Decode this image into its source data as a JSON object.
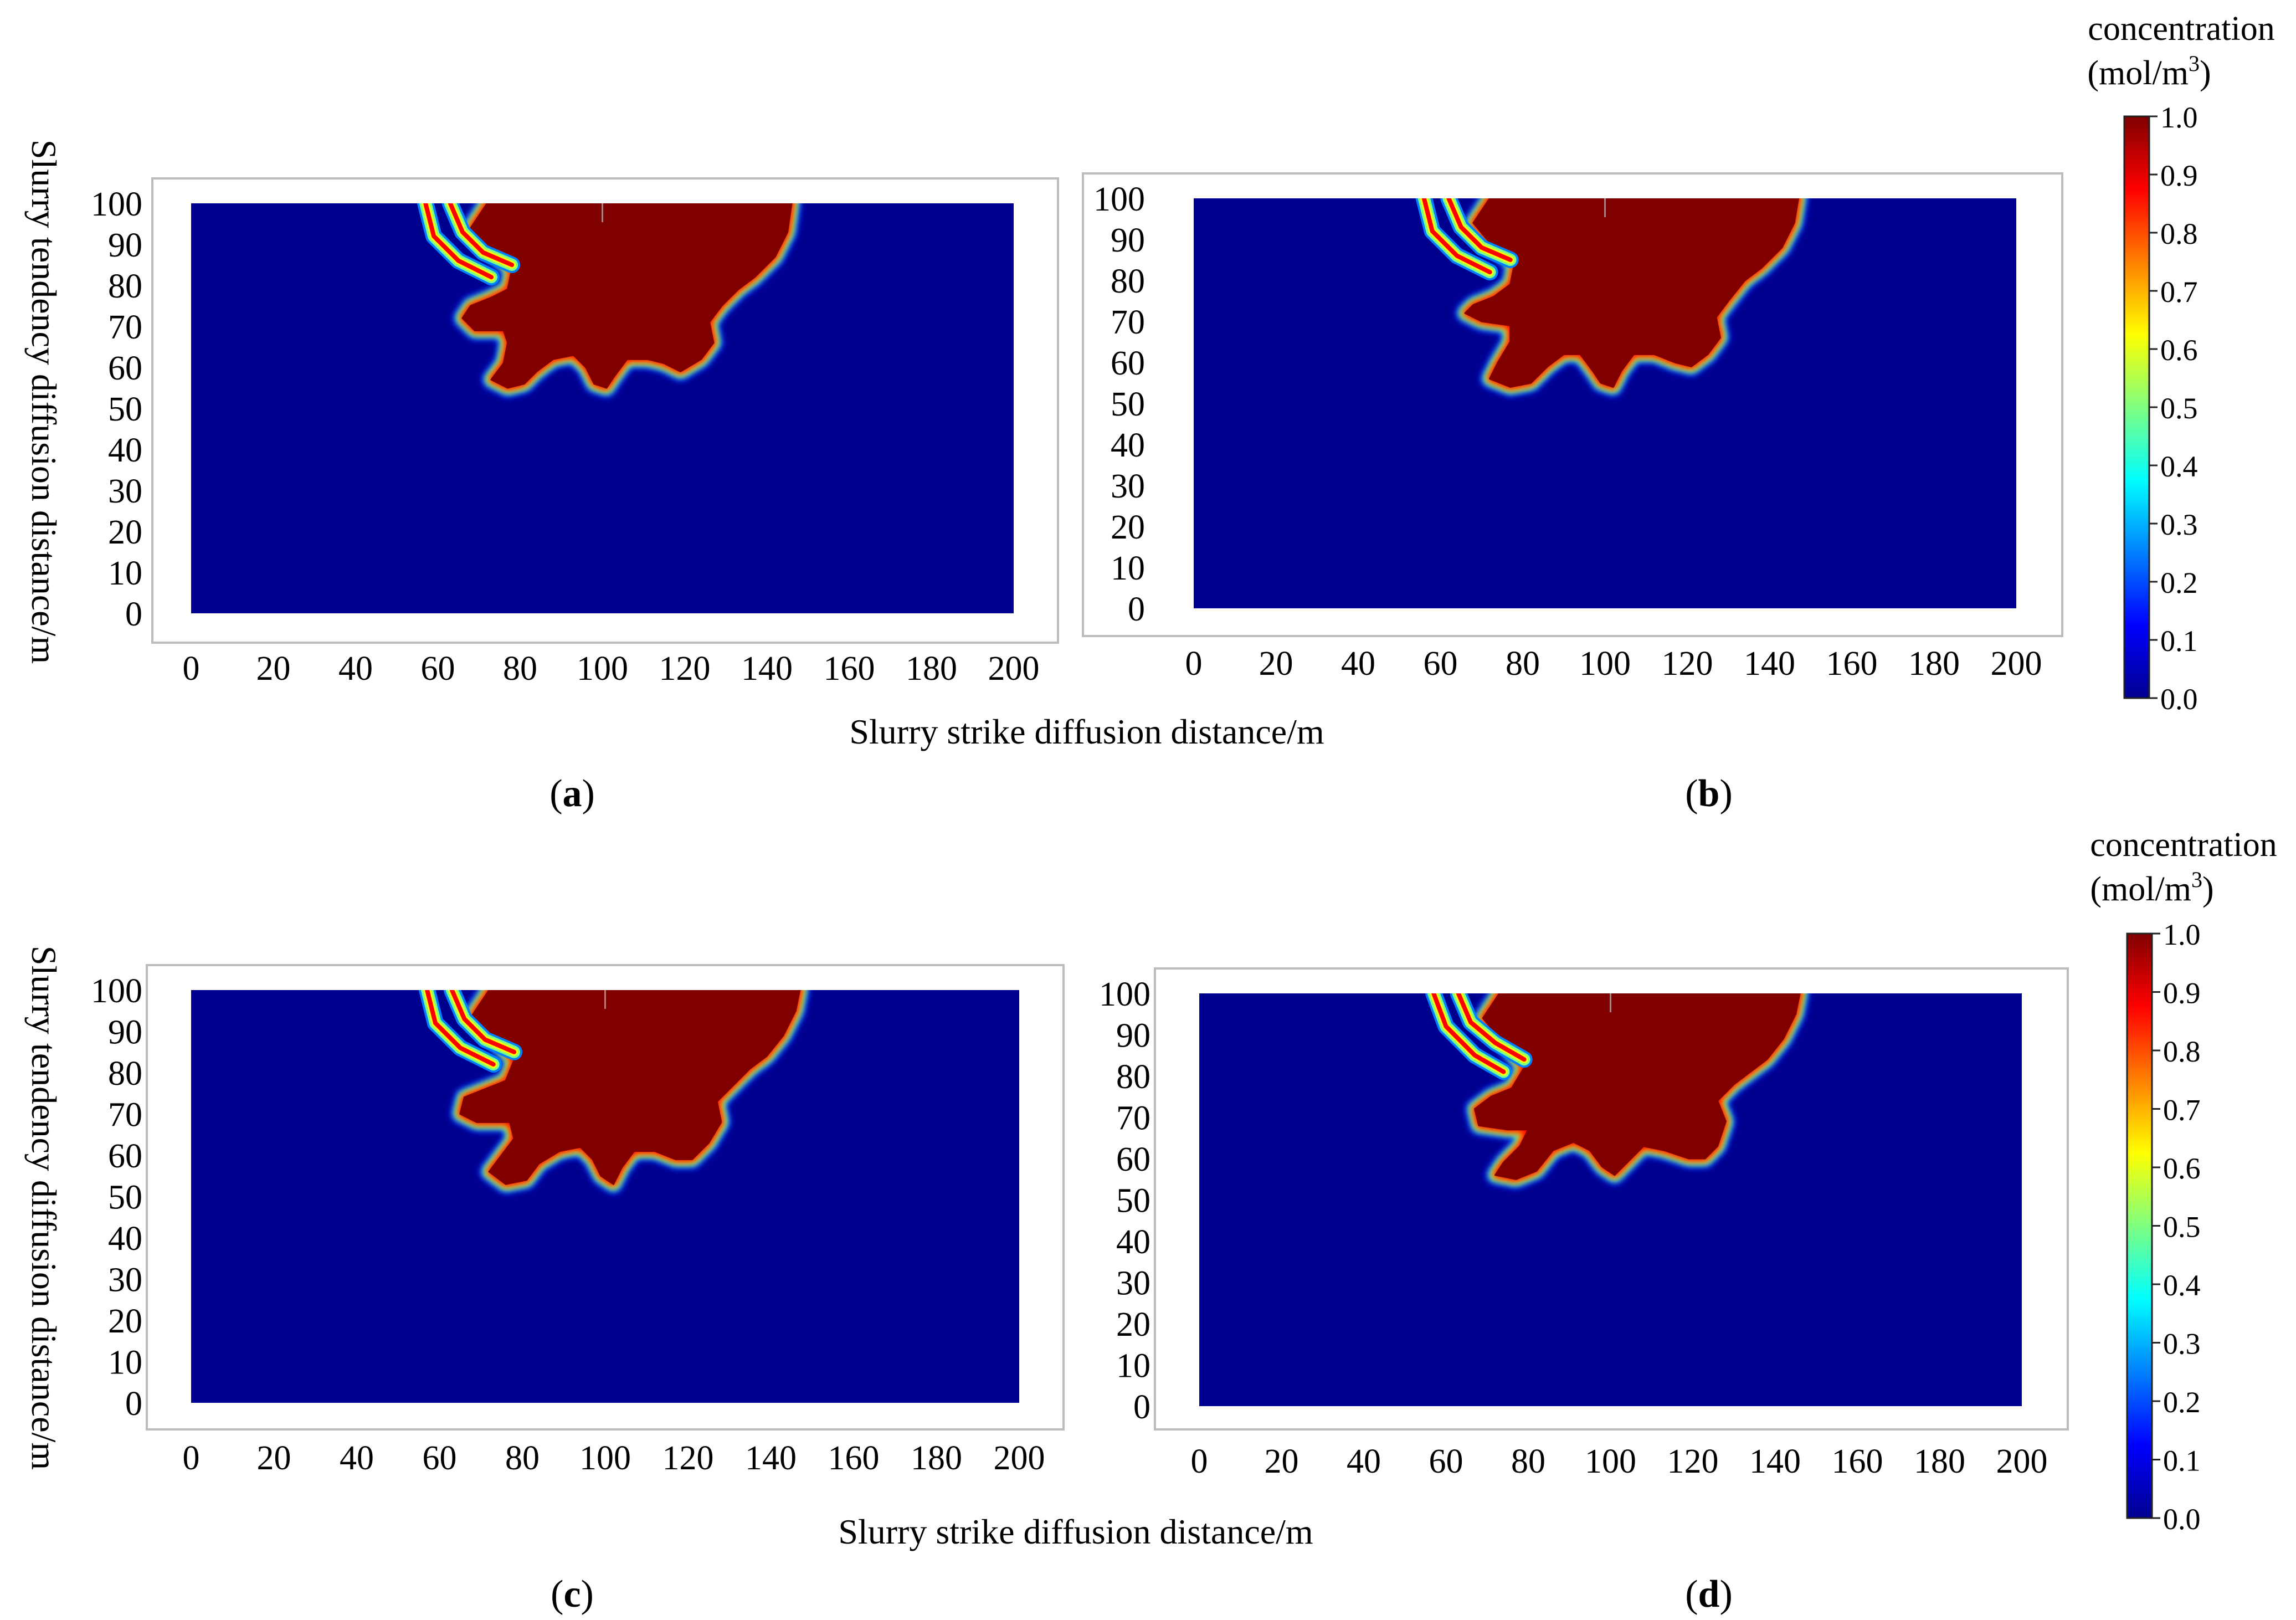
{
  "figure": {
    "rows": [
      {
        "xlabel": "Slurry strike diffusion distance/m",
        "ylabel": "Slurry tendency diffusion distance/m"
      },
      {
        "xlabel": "Slurry strike diffusion distance/m",
        "ylabel": "Slurry tendency diffusion distance/m"
      }
    ],
    "colorbars": [
      {
        "title_line1": "concentration",
        "title_line2_base": "(mol/m",
        "title_line2_sup": "3",
        "title_line2_end": ")",
        "ticks": [
          "0.0",
          "0.1",
          "0.2",
          "0.3",
          "0.4",
          "0.5",
          "0.6",
          "0.7",
          "0.8",
          "0.9",
          "1.0"
        ]
      },
      {
        "title_line1": "concentration",
        "title_line2_base": "(mol/m",
        "title_line2_sup": "3",
        "title_line2_end": ")",
        "ticks": [
          "0.0",
          "0.1",
          "0.2",
          "0.3",
          "0.4",
          "0.5",
          "0.6",
          "0.7",
          "0.8",
          "0.9",
          "1.0"
        ]
      }
    ],
    "colormap": [
      "#00008f",
      "#0000ff",
      "#0080ff",
      "#00ffff",
      "#80ff80",
      "#ffff00",
      "#ff8000",
      "#ff0000",
      "#800000"
    ],
    "background_color": "#00008f",
    "plume_color": "#800000"
  },
  "chart_data": [
    {
      "panel": "a",
      "label": "a",
      "type": "heatmap",
      "x_ticks": [
        "0",
        "20",
        "40",
        "60",
        "80",
        "100",
        "120",
        "140",
        "160",
        "180",
        "200"
      ],
      "y_ticks": [
        "0",
        "10",
        "20",
        "30",
        "40",
        "50",
        "60",
        "70",
        "80",
        "90",
        "100"
      ],
      "xlim": [
        0,
        200
      ],
      "ylim": [
        0,
        100
      ],
      "value_range": [
        0.0,
        1.0
      ],
      "plume_outline": [
        [
          72,
          100
        ],
        [
          68,
          94
        ],
        [
          73,
          88
        ],
        [
          78,
          84
        ],
        [
          77,
          79
        ],
        [
          73,
          77
        ],
        [
          68,
          75
        ],
        [
          66,
          72
        ],
        [
          69,
          69
        ],
        [
          76,
          69
        ],
        [
          77,
          66
        ],
        [
          76,
          61
        ],
        [
          73,
          57
        ],
        [
          77,
          55
        ],
        [
          81,
          56
        ],
        [
          84,
          59
        ],
        [
          88,
          62
        ],
        [
          93,
          63
        ],
        [
          96,
          60
        ],
        [
          98,
          56
        ],
        [
          101,
          55
        ],
        [
          103,
          58
        ],
        [
          106,
          62
        ],
        [
          111,
          62
        ],
        [
          115,
          61
        ],
        [
          119,
          59
        ],
        [
          124,
          62
        ],
        [
          127,
          66
        ],
        [
          126,
          71
        ],
        [
          129,
          75
        ],
        [
          133,
          79
        ],
        [
          137,
          82
        ],
        [
          142,
          87
        ],
        [
          145,
          93
        ],
        [
          146,
          100
        ]
      ],
      "fingers": [
        [
          [
            57,
            100
          ],
          [
            59,
            92
          ],
          [
            65,
            86
          ],
          [
            73,
            82
          ]
        ],
        [
          [
            63,
            100
          ],
          [
            66,
            93
          ],
          [
            71,
            88
          ],
          [
            78,
            85
          ]
        ]
      ]
    },
    {
      "panel": "b",
      "label": "b",
      "type": "heatmap",
      "x_ticks": [
        "0",
        "20",
        "40",
        "60",
        "80",
        "100",
        "120",
        "140",
        "160",
        "180",
        "200"
      ],
      "y_ticks": [
        "0",
        "10",
        "20",
        "30",
        "40",
        "50",
        "60",
        "70",
        "80",
        "90",
        "100"
      ],
      "xlim": [
        0,
        200
      ],
      "ylim": [
        0,
        100
      ],
      "value_range": [
        0.0,
        1.0
      ],
      "plume_outline": [
        [
          72,
          100
        ],
        [
          68,
          94
        ],
        [
          73,
          88
        ],
        [
          78,
          84
        ],
        [
          77,
          79
        ],
        [
          73,
          76
        ],
        [
          68,
          74
        ],
        [
          66,
          72
        ],
        [
          70,
          70
        ],
        [
          77,
          69
        ],
        [
          77,
          65
        ],
        [
          74,
          60
        ],
        [
          72,
          56
        ],
        [
          77,
          54
        ],
        [
          82,
          55
        ],
        [
          86,
          59
        ],
        [
          90,
          62
        ],
        [
          94,
          62
        ],
        [
          97,
          58
        ],
        [
          99,
          55
        ],
        [
          102,
          54
        ],
        [
          104,
          58
        ],
        [
          107,
          62
        ],
        [
          112,
          62
        ],
        [
          117,
          60
        ],
        [
          121,
          59
        ],
        [
          125,
          62
        ],
        [
          128,
          66
        ],
        [
          127,
          71
        ],
        [
          130,
          75
        ],
        [
          134,
          80
        ],
        [
          138,
          83
        ],
        [
          143,
          88
        ],
        [
          146,
          94
        ],
        [
          147,
          100
        ]
      ],
      "fingers": [
        [
          [
            56,
            100
          ],
          [
            58,
            92
          ],
          [
            64,
            86
          ],
          [
            72,
            82
          ]
        ],
        [
          [
            62,
            100
          ],
          [
            65,
            93
          ],
          [
            70,
            88
          ],
          [
            77,
            85
          ]
        ]
      ]
    },
    {
      "panel": "c",
      "label": "c",
      "type": "heatmap",
      "x_ticks": [
        "0",
        "20",
        "40",
        "60",
        "80",
        "100",
        "120",
        "140",
        "160",
        "180",
        "200"
      ],
      "y_ticks": [
        "0",
        "10",
        "20",
        "30",
        "40",
        "50",
        "60",
        "70",
        "80",
        "90",
        "100"
      ],
      "xlim": [
        0,
        200
      ],
      "ylim": [
        0,
        100
      ],
      "value_range": [
        0.0,
        1.0
      ],
      "plume_outline": [
        [
          72,
          100
        ],
        [
          68,
          94
        ],
        [
          73,
          88
        ],
        [
          78,
          83
        ],
        [
          76,
          78
        ],
        [
          71,
          76
        ],
        [
          66,
          74
        ],
        [
          65,
          70
        ],
        [
          69,
          68
        ],
        [
          77,
          68
        ],
        [
          78,
          64
        ],
        [
          75,
          60
        ],
        [
          72,
          56
        ],
        [
          76,
          53
        ],
        [
          81,
          54
        ],
        [
          84,
          58
        ],
        [
          89,
          61
        ],
        [
          94,
          62
        ],
        [
          97,
          59
        ],
        [
          99,
          55
        ],
        [
          102,
          53
        ],
        [
          104,
          57
        ],
        [
          107,
          61
        ],
        [
          112,
          61
        ],
        [
          117,
          59
        ],
        [
          121,
          59
        ],
        [
          125,
          63
        ],
        [
          128,
          68
        ],
        [
          127,
          73
        ],
        [
          131,
          77
        ],
        [
          135,
          81
        ],
        [
          139,
          84
        ],
        [
          143,
          89
        ],
        [
          146,
          95
        ],
        [
          147,
          100
        ]
      ],
      "fingers": [
        [
          [
            57,
            100
          ],
          [
            59,
            92
          ],
          [
            65,
            86
          ],
          [
            73,
            82
          ]
        ],
        [
          [
            63,
            100
          ],
          [
            66,
            93
          ],
          [
            71,
            88
          ],
          [
            78,
            85
          ]
        ]
      ]
    },
    {
      "panel": "d",
      "label": "d",
      "type": "heatmap",
      "x_ticks": [
        "0",
        "20",
        "40",
        "60",
        "80",
        "100",
        "120",
        "140",
        "160",
        "180",
        "200"
      ],
      "y_ticks": [
        "0",
        "10",
        "20",
        "30",
        "40",
        "50",
        "60",
        "70",
        "80",
        "90",
        "100"
      ],
      "xlim": [
        0,
        200
      ],
      "ylim": [
        0,
        100
      ],
      "value_range": [
        0.0,
        1.0
      ],
      "plume_outline": [
        [
          73,
          100
        ],
        [
          69,
          94
        ],
        [
          74,
          88
        ],
        [
          79,
          82
        ],
        [
          76,
          77
        ],
        [
          71,
          75
        ],
        [
          67,
          72
        ],
        [
          68,
          68
        ],
        [
          75,
          67
        ],
        [
          80,
          67
        ],
        [
          78,
          63
        ],
        [
          74,
          59
        ],
        [
          72,
          56
        ],
        [
          77,
          55
        ],
        [
          82,
          57
        ],
        [
          86,
          62
        ],
        [
          91,
          64
        ],
        [
          95,
          62
        ],
        [
          98,
          58
        ],
        [
          101,
          56
        ],
        [
          104,
          59
        ],
        [
          108,
          63
        ],
        [
          113,
          62
        ],
        [
          119,
          60
        ],
        [
          123,
          60
        ],
        [
          126,
          63
        ],
        [
          128,
          69
        ],
        [
          126,
          74
        ],
        [
          130,
          78
        ],
        [
          134,
          81
        ],
        [
          138,
          84
        ],
        [
          142,
          89
        ],
        [
          145,
          95
        ],
        [
          146,
          100
        ]
      ],
      "fingers": [
        [
          [
            57,
            100
          ],
          [
            60,
            92
          ],
          [
            67,
            85
          ],
          [
            74,
            81
          ]
        ],
        [
          [
            63,
            100
          ],
          [
            66,
            93
          ],
          [
            72,
            88
          ],
          [
            79,
            84
          ]
        ]
      ]
    }
  ]
}
